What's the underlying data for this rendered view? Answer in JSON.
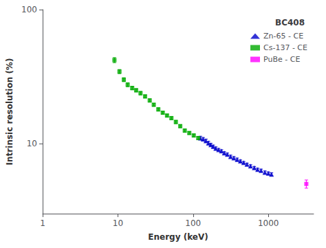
{
  "chart_data": {
    "type": "scatter",
    "title": "BC408",
    "xlabel": "Energy (keV)",
    "ylabel": "Intrinsic resolution (%)",
    "log": true,
    "xlim": [
      1,
      4000
    ],
    "xticks": [
      1,
      10,
      100,
      1000
    ],
    "ylim": [
      3,
      100
    ],
    "yticks": [
      10,
      100
    ],
    "grid": false,
    "legend": "upper right",
    "series": [
      {
        "name": "Zn-65 - CE",
        "color": "#0000cc",
        "marker": "triangle",
        "x": [
          125,
          136,
          148,
          160,
          172,
          185,
          200,
          218,
          238,
          260,
          285,
          315,
          348,
          385,
          425,
          470,
          520,
          580,
          650,
          720,
          800,
          900,
          1000,
          1100
        ],
        "values": [
          11.0,
          10.8,
          10.5,
          10.1,
          9.8,
          9.5,
          9.2,
          9.0,
          8.8,
          8.5,
          8.3,
          8.0,
          7.8,
          7.6,
          7.4,
          7.2,
          7.0,
          6.8,
          6.6,
          6.4,
          6.3,
          6.1,
          6.0,
          5.9
        ],
        "errors": [
          0.35,
          0.3,
          0.3,
          0.3,
          0.25,
          0.25,
          0.25,
          0.2,
          0.2,
          0.2,
          0.2,
          0.2,
          0.2,
          0.2,
          0.15,
          0.15,
          0.15,
          0.15,
          0.15,
          0.15,
          0.15,
          0.15,
          0.15,
          0.15
        ]
      },
      {
        "name": "Cs-137 - CE",
        "color": "#00aa00",
        "marker": "square",
        "x": [
          9.0,
          10.5,
          12.0,
          13.5,
          15.5,
          17.5,
          20.0,
          23.0,
          26.5,
          30.0,
          34.5,
          39.5,
          45.0,
          51.5,
          59.0,
          67.5,
          77.5,
          89.0,
          102.0,
          117.0
        ],
        "values": [
          42.0,
          34.5,
          30.0,
          27.5,
          26.0,
          25.0,
          23.8,
          22.5,
          21.0,
          19.5,
          18.0,
          17.0,
          16.2,
          15.5,
          14.5,
          13.5,
          12.5,
          12.0,
          11.5,
          11.0
        ],
        "errors": [
          1.8,
          1.2,
          1.0,
          0.9,
          0.8,
          0.7,
          0.7,
          0.6,
          0.6,
          0.5,
          0.5,
          0.4,
          0.4,
          0.4,
          0.4,
          0.35,
          0.35,
          0.3,
          0.3,
          0.3
        ]
      },
      {
        "name": "PuBe - CE",
        "color": "#ff00ff",
        "marker": "square",
        "x": [
          3200
        ],
        "values": [
          5.0
        ],
        "errors": [
          0.35
        ]
      }
    ]
  }
}
